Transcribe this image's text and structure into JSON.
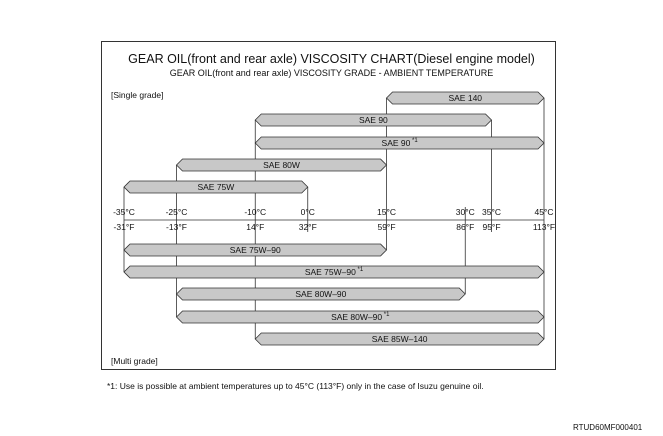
{
  "title": "GEAR OIL(front and rear axle) VISCOSITY CHART(Diesel engine model)",
  "subtitle": "GEAR OIL(front and rear axle) VISCOSITY GRADE - AMBIENT TEMPERATURE",
  "single_grade_label": "[Single grade]",
  "multi_grade_label": "[Multi grade]",
  "footnote": "*1: Use is possible at ambient temperatures up to 45°C (113°F) only in the case of Isuzu genuine oil.",
  "figure_id": "RTUD60MF000401",
  "colors": {
    "bar_fill": "#c8c8c8",
    "bar_stroke": "#333333"
  },
  "chart_data": {
    "type": "bar",
    "axis": {
      "unit": "°C",
      "ticks": [
        {
          "c": -35,
          "celsius": "-35°C",
          "fahrenheit": "-31°F"
        },
        {
          "c": -25,
          "celsius": "-25°C",
          "fahrenheit": "-13°F"
        },
        {
          "c": -10,
          "celsius": "-10°C",
          "fahrenheit": "14°F"
        },
        {
          "c": 0,
          "celsius": "0°C",
          "fahrenheit": "32°F"
        },
        {
          "c": 15,
          "celsius": "15°C",
          "fahrenheit": "59°F"
        },
        {
          "c": 30,
          "celsius": "30°C",
          "fahrenheit": "86°F"
        },
        {
          "c": 35,
          "celsius": "35°C",
          "fahrenheit": "95°F"
        },
        {
          "c": 45,
          "celsius": "45°C",
          "fahrenheit": "113°F"
        }
      ]
    },
    "single_grade": [
      {
        "name": "SAE 140",
        "note": "",
        "from": 15,
        "to": 45
      },
      {
        "name": "SAE 90",
        "note": "",
        "from": -10,
        "to": 35
      },
      {
        "name": "SAE 90",
        "note": "*1",
        "from": -10,
        "to": 45
      },
      {
        "name": "SAE 80W",
        "note": "",
        "from": -25,
        "to": 15
      },
      {
        "name": "SAE 75W",
        "note": "",
        "from": -35,
        "to": 0
      }
    ],
    "multi_grade": [
      {
        "name": "SAE 75W–90",
        "note": "",
        "from": -35,
        "to": 15
      },
      {
        "name": "SAE 75W–90",
        "note": "*1",
        "from": -35,
        "to": 45
      },
      {
        "name": "SAE 80W–90",
        "note": "",
        "from": -25,
        "to": 30
      },
      {
        "name": "SAE 80W–90",
        "note": "*1",
        "from": -25,
        "to": 45
      },
      {
        "name": "SAE 85W–140",
        "note": "",
        "from": -10,
        "to": 45
      }
    ]
  }
}
